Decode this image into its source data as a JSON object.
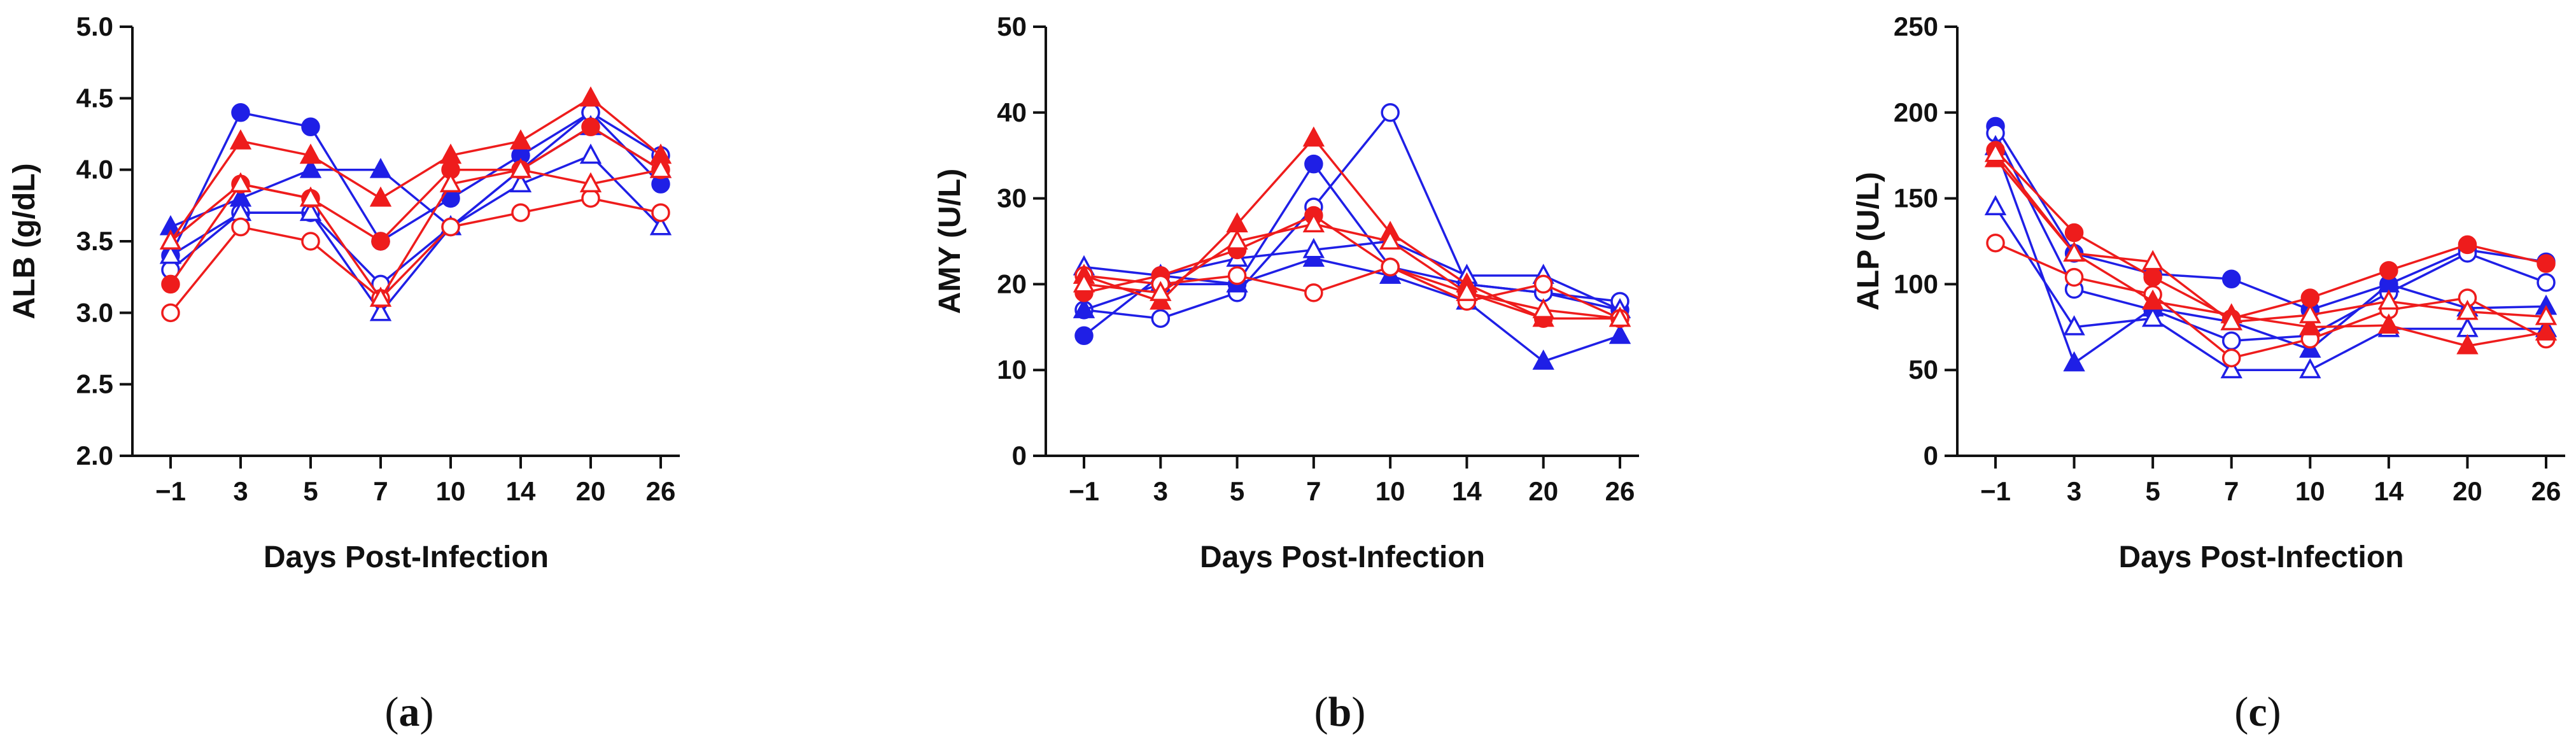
{
  "colors": {
    "blue": "#1f1fe6",
    "red": "#ee1c1c",
    "axis": "#111111"
  },
  "chart_data": [
    {
      "type": "line",
      "panel_label": "a",
      "xlabel": "Days Post-Infection",
      "ylabel": "ALB (g/dL)",
      "categories": [
        "−1",
        "3",
        "5",
        "7",
        "10",
        "14",
        "20",
        "26"
      ],
      "ylim": [
        2.0,
        5.0
      ],
      "yticks": [
        2.0,
        2.5,
        3.0,
        3.5,
        4.0,
        4.5,
        5.0
      ],
      "ytick_labels": [
        "2.0",
        "2.5",
        "3.0",
        "3.5",
        "4.0",
        "4.5",
        "5.0"
      ],
      "series": [
        {
          "name": "blue-filled-circle",
          "color": "blue",
          "marker": "circle",
          "filled": true,
          "values": [
            3.4,
            4.4,
            4.3,
            3.5,
            3.8,
            4.1,
            4.4,
            3.9
          ]
        },
        {
          "name": "blue-open-circle",
          "color": "blue",
          "marker": "circle",
          "filled": false,
          "values": [
            3.3,
            3.7,
            3.7,
            3.2,
            3.6,
            4.0,
            4.4,
            4.1
          ]
        },
        {
          "name": "blue-filled-triangle",
          "color": "blue",
          "marker": "triangle",
          "filled": true,
          "values": [
            3.6,
            3.8,
            4.0,
            4.0,
            3.6,
            4.0,
            4.3,
            4.0
          ]
        },
        {
          "name": "blue-open-triangle",
          "color": "blue",
          "marker": "triangle",
          "filled": false,
          "values": [
            3.4,
            3.7,
            3.7,
            3.0,
            3.6,
            3.9,
            4.1,
            3.6
          ]
        },
        {
          "name": "red-filled-circle",
          "color": "red",
          "marker": "circle",
          "filled": true,
          "values": [
            3.2,
            3.9,
            3.8,
            3.5,
            4.0,
            4.0,
            4.3,
            4.0
          ]
        },
        {
          "name": "red-open-circle",
          "color": "red",
          "marker": "circle",
          "filled": false,
          "values": [
            3.0,
            3.6,
            3.5,
            3.1,
            3.6,
            3.7,
            3.8,
            3.7
          ]
        },
        {
          "name": "red-filled-triangle",
          "color": "red",
          "marker": "triangle",
          "filled": true,
          "values": [
            3.5,
            4.2,
            4.1,
            3.8,
            4.1,
            4.2,
            4.5,
            4.1
          ]
        },
        {
          "name": "red-open-triangle",
          "color": "red",
          "marker": "triangle",
          "filled": false,
          "values": [
            3.5,
            3.9,
            3.8,
            3.1,
            3.9,
            4.0,
            3.9,
            4.0
          ]
        }
      ]
    },
    {
      "type": "line",
      "panel_label": "b",
      "xlabel": "Days Post-Infection",
      "ylabel": "AMY (U/L)",
      "categories": [
        "−1",
        "3",
        "5",
        "7",
        "10",
        "14",
        "20",
        "26"
      ],
      "ylim": [
        0,
        50
      ],
      "yticks": [
        0,
        10,
        20,
        30,
        40,
        50
      ],
      "ytick_labels": [
        "0",
        "10",
        "20",
        "30",
        "40",
        "50"
      ],
      "series": [
        {
          "name": "blue-filled-circle",
          "color": "blue",
          "marker": "circle",
          "filled": true,
          "values": [
            14,
            21,
            20,
            34,
            22,
            20,
            19,
            17
          ]
        },
        {
          "name": "blue-open-circle",
          "color": "blue",
          "marker": "circle",
          "filled": false,
          "values": [
            17,
            16,
            19,
            29,
            40,
            20,
            19,
            18
          ]
        },
        {
          "name": "blue-filled-triangle",
          "color": "blue",
          "marker": "triangle",
          "filled": true,
          "values": [
            17,
            20,
            20,
            23,
            21,
            18,
            11,
            14
          ]
        },
        {
          "name": "blue-open-triangle",
          "color": "blue",
          "marker": "triangle",
          "filled": false,
          "values": [
            22,
            21,
            23,
            24,
            25,
            21,
            21,
            17
          ]
        },
        {
          "name": "red-filled-circle",
          "color": "red",
          "marker": "circle",
          "filled": true,
          "values": [
            19,
            21,
            24,
            28,
            22,
            19,
            16,
            16
          ]
        },
        {
          "name": "red-open-circle",
          "color": "red",
          "marker": "circle",
          "filled": false,
          "values": [
            21,
            20,
            21,
            19,
            22,
            18,
            20,
            16
          ]
        },
        {
          "name": "red-filled-triangle",
          "color": "red",
          "marker": "triangle",
          "filled": true,
          "values": [
            21,
            18,
            27,
            37,
            26,
            20,
            16,
            16
          ]
        },
        {
          "name": "red-open-triangle",
          "color": "red",
          "marker": "triangle",
          "filled": false,
          "values": [
            20,
            19,
            25,
            27,
            25,
            19,
            17,
            16
          ]
        }
      ]
    },
    {
      "type": "line",
      "panel_label": "c",
      "xlabel": "Days Post-Infection",
      "ylabel": "ALP (U/L)",
      "categories": [
        "−1",
        "3",
        "5",
        "7",
        "10",
        "14",
        "20",
        "26"
      ],
      "ylim": [
        0,
        250
      ],
      "yticks": [
        0,
        50,
        100,
        150,
        200,
        250
      ],
      "ytick_labels": [
        "0",
        "50",
        "100",
        "150",
        "200",
        "250"
      ],
      "series": [
        {
          "name": "blue-filled-circle",
          "color": "blue",
          "marker": "circle",
          "filled": true,
          "values": [
            192,
            118,
            106,
            103,
            85,
            100,
            120,
            113
          ]
        },
        {
          "name": "blue-open-circle",
          "color": "blue",
          "marker": "circle",
          "filled": false,
          "values": [
            188,
            97,
            85,
            67,
            70,
            95,
            118,
            101
          ]
        },
        {
          "name": "blue-filled-triangle",
          "color": "blue",
          "marker": "triangle",
          "filled": true,
          "values": [
            180,
            54,
            86,
            78,
            62,
            100,
            86,
            87
          ]
        },
        {
          "name": "blue-open-triangle",
          "color": "blue",
          "marker": "triangle",
          "filled": false,
          "values": [
            145,
            75,
            80,
            50,
            50,
            74,
            74,
            74
          ]
        },
        {
          "name": "red-filled-circle",
          "color": "red",
          "marker": "circle",
          "filled": true,
          "values": [
            178,
            130,
            104,
            80,
            92,
            108,
            123,
            112
          ]
        },
        {
          "name": "red-open-circle",
          "color": "red",
          "marker": "circle",
          "filled": false,
          "values": [
            124,
            104,
            94,
            57,
            68,
            85,
            92,
            68
          ]
        },
        {
          "name": "red-filled-triangle",
          "color": "red",
          "marker": "triangle",
          "filled": true,
          "values": [
            173,
            118,
            90,
            82,
            75,
            76,
            64,
            72
          ]
        },
        {
          "name": "red-open-triangle",
          "color": "red",
          "marker": "triangle",
          "filled": false,
          "values": [
            176,
            118,
            113,
            78,
            82,
            90,
            84,
            81
          ]
        }
      ]
    }
  ]
}
